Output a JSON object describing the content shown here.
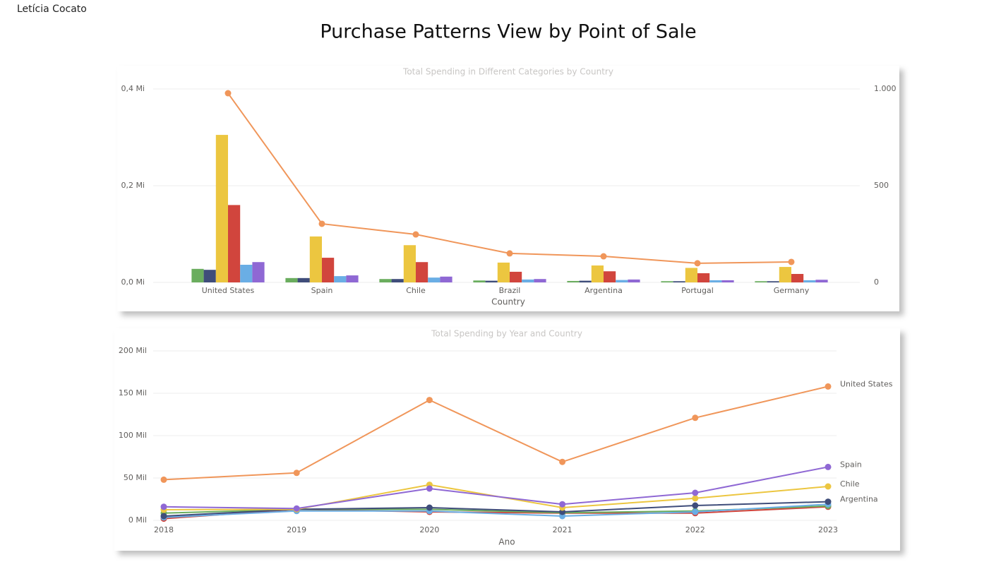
{
  "author": "Letícia Cocato",
  "title": "Purchase Patterns View by Point of Sale",
  "chart_data": [
    {
      "type": "combo",
      "title": "Total Spending in Different Categories by Country",
      "xlabel": "Country",
      "categories": [
        "United States",
        "Spain",
        "Chile",
        "Brazil",
        "Argentina",
        "Portugal",
        "Germany"
      ],
      "ylim": [
        0,
        400000
      ],
      "yticks": [
        {
          "value": 0,
          "label": "0,0 Mi"
        },
        {
          "value": 200000,
          "label": "0,2 Mi"
        },
        {
          "value": 400000,
          "label": "0,4 Mi"
        }
      ],
      "y2lim": [
        0,
        1000
      ],
      "y2ticks": [
        0,
        500,
        {
          "value": 1000,
          "label": "1.000"
        }
      ],
      "grid": true,
      "series": [
        {
          "color": "#6aad5e",
          "values": [
            28000,
            9000,
            7000,
            4000,
            3000,
            2500,
            2500
          ]
        },
        {
          "color": "#3f4d7a",
          "values": [
            26000,
            9000,
            7000,
            3500,
            3500,
            2500,
            2500
          ]
        },
        {
          "color": "#ecc640",
          "values": [
            305000,
            95000,
            77000,
            41000,
            35000,
            30000,
            32000
          ]
        },
        {
          "color": "#d1453d",
          "values": [
            160000,
            51000,
            42000,
            22000,
            23000,
            19000,
            17500
          ]
        },
        {
          "color": "#6aaee5",
          "values": [
            36500,
            13000,
            10000,
            6000,
            5000,
            4500,
            4500
          ]
        },
        {
          "color": "#8f68d4",
          "values": [
            42000,
            14500,
            12000,
            7000,
            6000,
            4500,
            5500
          ]
        },
        {
          "type": "line",
          "axis": "y2",
          "color": "#f0965a",
          "values": [
            978,
            303,
            248,
            150,
            135,
            99,
            106
          ]
        }
      ]
    },
    {
      "type": "line",
      "title": "Total Spending by Year and Country",
      "xlabel": "Ano",
      "x": [
        2018,
        2019,
        2020,
        2021,
        2022,
        2023
      ],
      "xlim": [
        2018,
        2023
      ],
      "xticks": [
        2018,
        2019,
        2020,
        2021,
        2022,
        2023
      ],
      "ylim": [
        0,
        200000
      ],
      "yticks": [
        {
          "value": 0,
          "label": "0 Mil"
        },
        {
          "value": 50000,
          "label": "50 Mil"
        },
        {
          "value": 100000,
          "label": "100 Mil"
        },
        {
          "value": 150000,
          "label": "150 Mil"
        },
        {
          "value": 200000,
          "label": "200 Mil"
        }
      ],
      "grid": true,
      "series": [
        {
          "color": "#d1453d",
          "values": [
            2000,
            13000,
            10000,
            8500,
            8500,
            16000
          ]
        },
        {
          "color": "#6aad5e",
          "values": [
            8500,
            13000,
            13000,
            9000,
            11000,
            17000
          ]
        },
        {
          "color": "#6aaee5",
          "values": [
            3500,
            11000,
            11000,
            5000,
            10000,
            19000
          ]
        },
        {
          "name": "Argentina",
          "color": "#3f4d7a",
          "values": [
            5000,
            13000,
            15000,
            10000,
            17500,
            22000
          ]
        },
        {
          "name": "Chile",
          "color": "#ecc640",
          "values": [
            12500,
            13000,
            42000,
            15000,
            26000,
            40000
          ]
        },
        {
          "name": "Spain",
          "color": "#8f68d4",
          "values": [
            16000,
            14000,
            37500,
            19000,
            32500,
            63000
          ]
        },
        {
          "name": "United States",
          "color": "#f0965a",
          "values": [
            48000,
            56000,
            142000,
            69000,
            121000,
            158000
          ]
        }
      ]
    }
  ]
}
